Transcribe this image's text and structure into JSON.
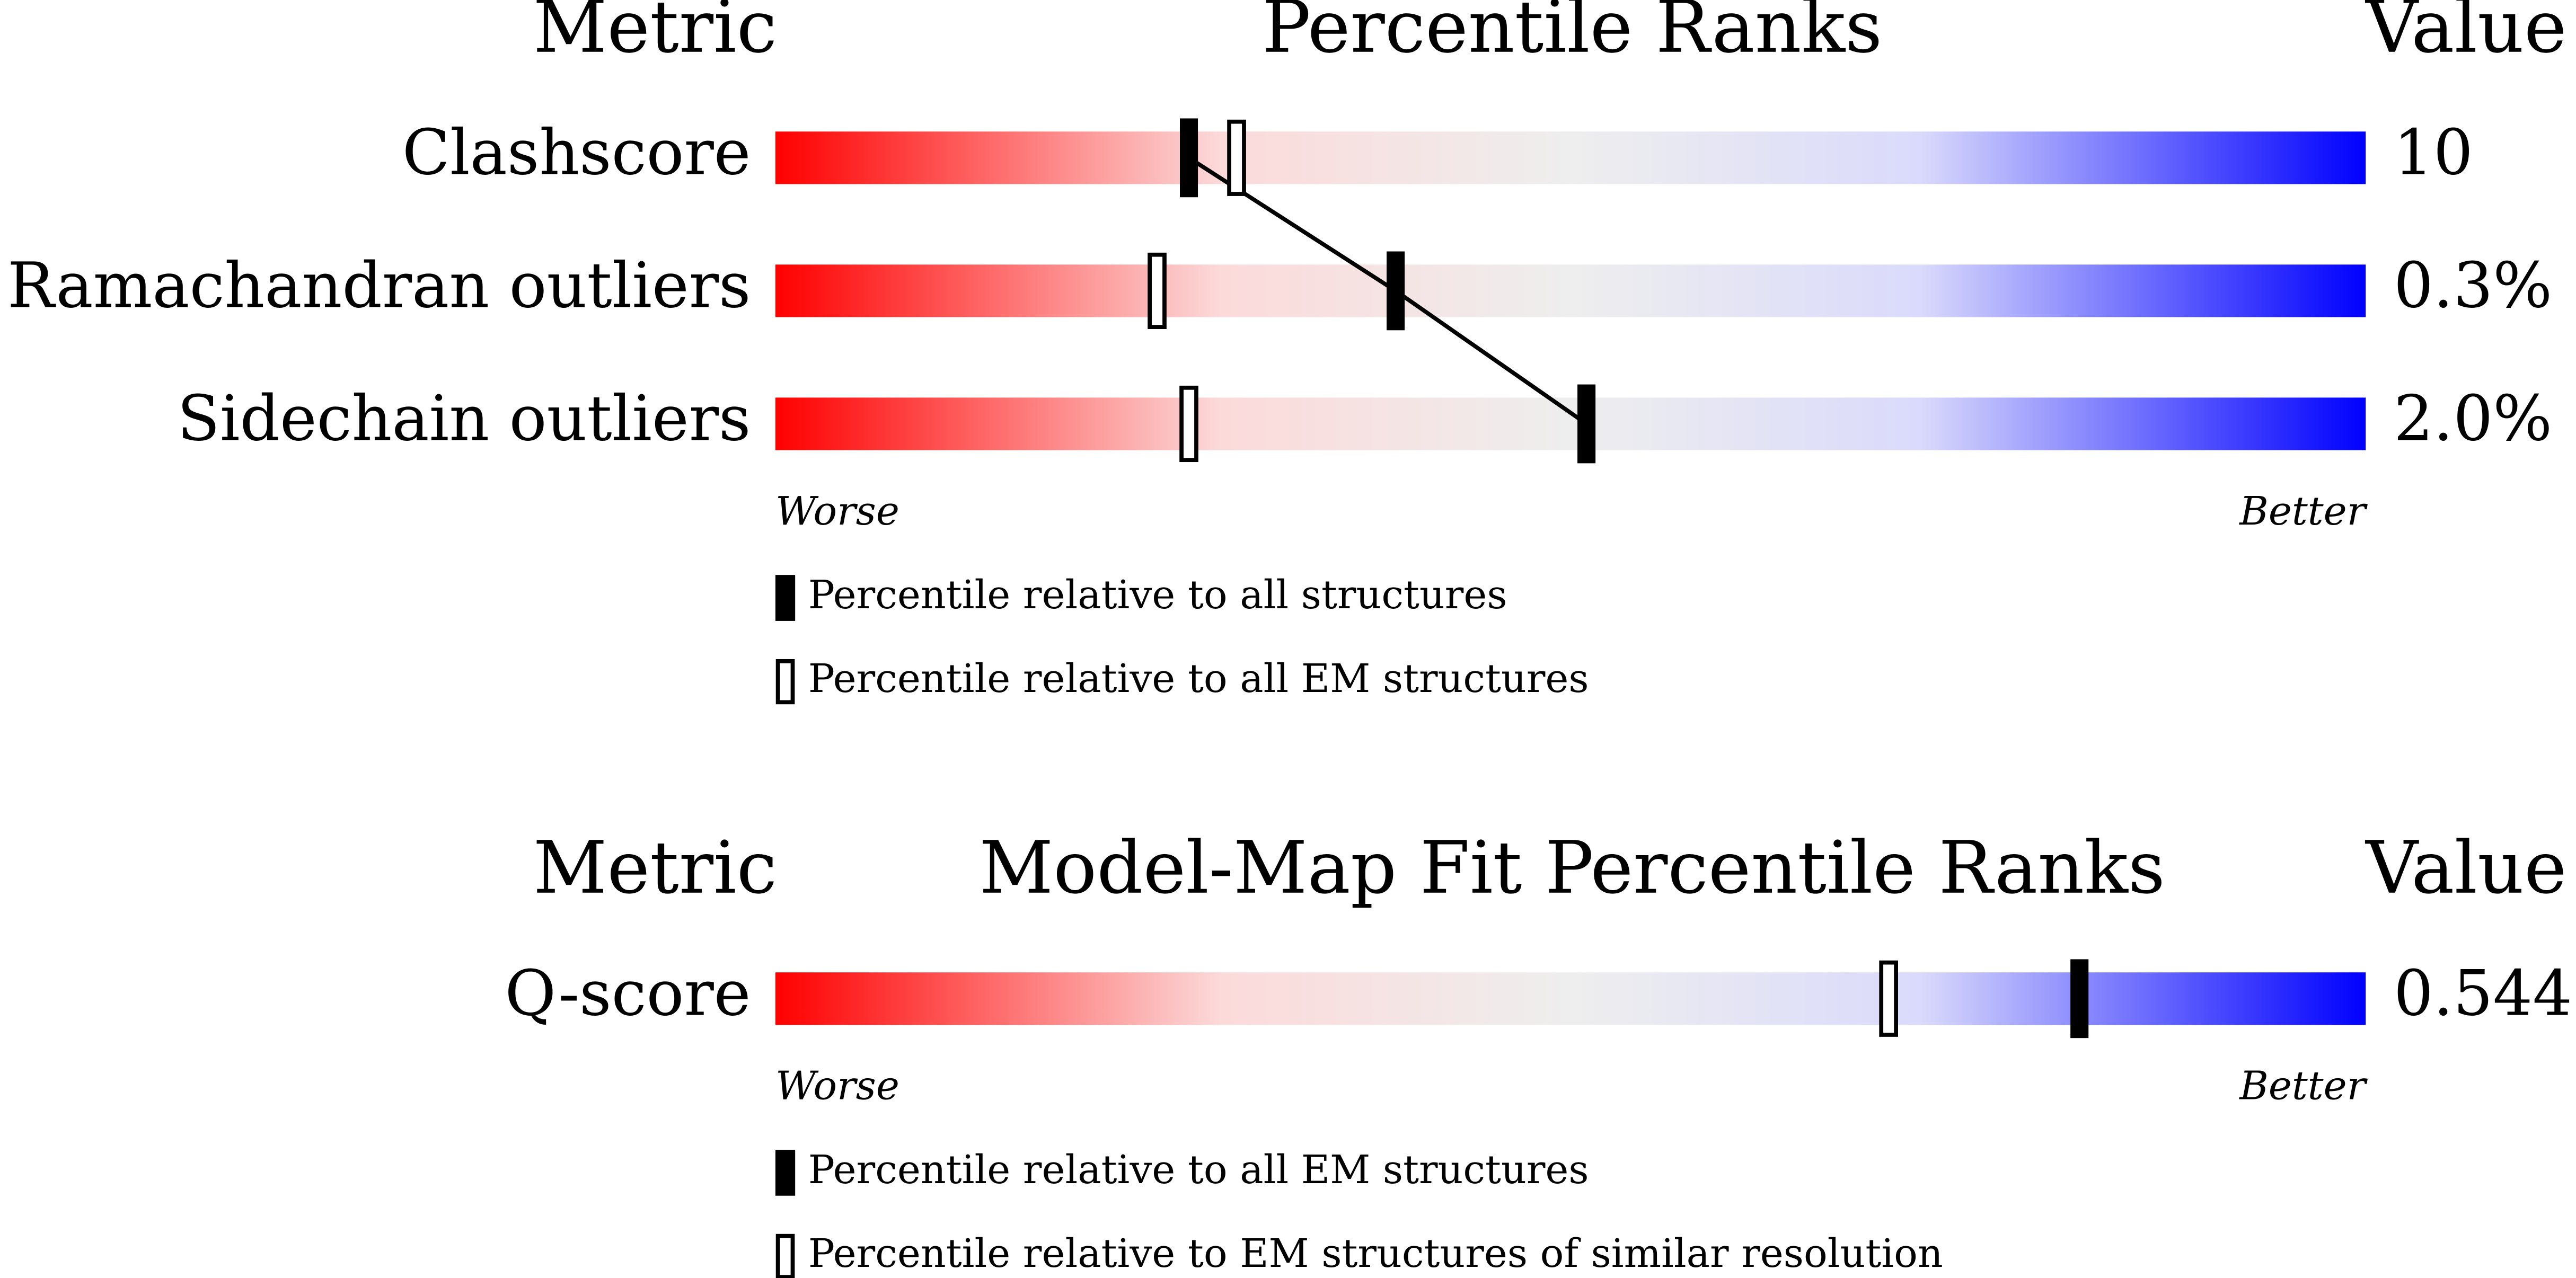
{
  "panels": [
    {
      "headers": {
        "metric": "Metric",
        "title": "Percentile Ranks",
        "value": "Value"
      },
      "xlim": [
        0,
        100
      ],
      "rows": [
        {
          "metric": "Clashscore",
          "value": "10",
          "percentile_all": 26,
          "percentile_em": 29
        },
        {
          "metric": "Ramachandran outliers",
          "value": "0.3%",
          "percentile_all": 39,
          "percentile_em": 24
        },
        {
          "metric": "Sidechain outliers",
          "value": "2.0%",
          "percentile_all": 51,
          "percentile_em": 26
        }
      ],
      "worse": "Worse",
      "better": "Better",
      "legend": [
        "Percentile relative to all structures",
        "Percentile relative to all EM structures"
      ]
    },
    {
      "headers": {
        "metric": "Metric",
        "title": "Model-Map Fit Percentile Ranks",
        "value": "Value"
      },
      "xlim": [
        0,
        100
      ],
      "rows": [
        {
          "metric": "Q-score",
          "value": "0.544",
          "percentile_all": 82,
          "percentile_em": 70
        }
      ],
      "worse": "Worse",
      "better": "Better",
      "legend": [
        "Percentile relative to all EM structures",
        "Percentile relative to EM structures of similar resolution"
      ]
    }
  ]
}
